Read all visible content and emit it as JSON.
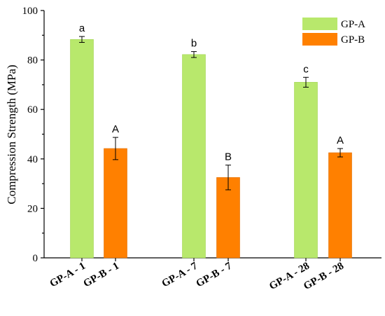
{
  "chart_data": {
    "type": "bar",
    "title": "",
    "xlabel": "",
    "ylabel": "Compression Strength (MPa)",
    "ylim": [
      0,
      100
    ],
    "yticks": [
      0,
      20,
      40,
      60,
      80,
      100
    ],
    "grid": false,
    "legend": "top-right",
    "categories": [
      "GP-A - 1",
      "GP-B - 1",
      "GP-A - 7",
      "GP-B - 7",
      "GP-A - 28",
      "GP-B - 28"
    ],
    "series": [
      {
        "name": "GP-A",
        "color": "#b8e86c",
        "edge": "#a2d454"
      },
      {
        "name": "GP-B",
        "color": "#ff8000",
        "edge": "#e06e00"
      }
    ],
    "bars": [
      {
        "category": "GP-A - 1",
        "series": "GP-A",
        "value": 88.3,
        "error": 1.2,
        "label": "a"
      },
      {
        "category": "GP-B - 1",
        "series": "GP-B",
        "value": 44.2,
        "error": 4.5,
        "label": "A"
      },
      {
        "category": "GP-A - 7",
        "series": "GP-A",
        "value": 82.2,
        "error": 1.2,
        "label": "b"
      },
      {
        "category": "GP-B - 7",
        "series": "GP-B",
        "value": 32.5,
        "error": 5.0,
        "label": "B"
      },
      {
        "category": "GP-A - 28",
        "series": "GP-A",
        "value": 71.0,
        "error": 2.0,
        "label": "c"
      },
      {
        "category": "GP-B - 28",
        "series": "GP-B",
        "value": 42.5,
        "error": 1.7,
        "label": "A"
      }
    ]
  }
}
